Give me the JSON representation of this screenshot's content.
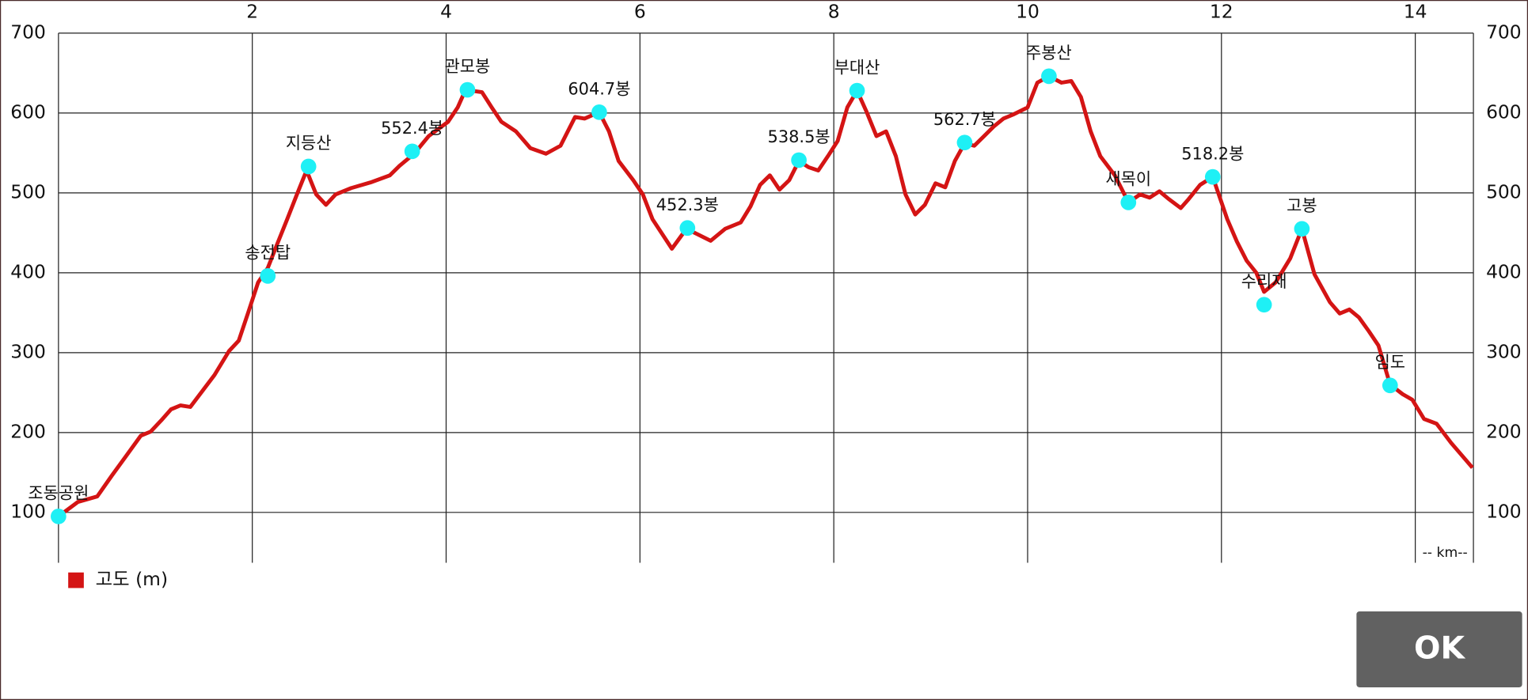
{
  "chart_data": {
    "type": "line",
    "x": [
      0,
      0.2,
      0.4,
      0.55,
      0.7,
      0.85,
      0.95,
      1.06,
      1.16,
      1.26,
      1.36,
      1.46,
      1.61,
      1.76,
      1.86,
      1.96,
      2.06,
      2.16,
      2.26,
      2.36,
      2.46,
      2.56,
      2.66,
      2.76,
      2.86,
      3.02,
      3.22,
      3.42,
      3.52,
      3.67,
      3.82,
      4.02,
      4.12,
      4.2,
      4.37,
      4.47,
      4.57,
      4.72,
      4.87,
      5.03,
      5.18,
      5.33,
      5.43,
      5.58,
      5.68,
      5.78,
      5.93,
      6.03,
      6.13,
      6.33,
      6.48,
      6.58,
      6.73,
      6.88,
      7.04,
      7.14,
      7.24,
      7.34,
      7.44,
      7.54,
      7.64,
      7.74,
      7.84,
      7.94,
      8.04,
      8.14,
      8.24,
      8.34,
      8.44,
      8.54,
      8.64,
      8.74,
      8.84,
      8.94,
      9.05,
      9.15,
      9.25,
      9.35,
      9.45,
      9.55,
      9.65,
      9.75,
      9.85,
      10.0,
      10.1,
      10.22,
      10.35,
      10.45,
      10.55,
      10.65,
      10.75,
      10.9,
      11.04,
      11.16,
      11.26,
      11.36,
      11.46,
      11.58,
      11.66,
      11.78,
      11.91,
      12.06,
      12.16,
      12.26,
      12.36,
      12.44,
      12.56,
      12.71,
      12.83,
      12.96,
      13.12,
      13.22,
      13.32,
      13.42,
      13.52,
      13.62,
      13.74,
      13.87,
      13.97,
      14.09,
      14.22,
      14.37,
      14.59
    ],
    "series": [
      {
        "name": "고도 (m)",
        "color": "#d41414",
        "values": [
          95,
          113,
          120,
          146,
          171,
          196,
          201,
          215,
          229,
          234,
          232,
          248,
          272,
          302,
          315,
          351,
          388,
          406,
          437,
          467,
          498,
          528,
          498,
          485,
          498,
          506,
          513,
          522,
          534,
          549,
          571,
          589,
          607,
          629,
          626,
          607,
          589,
          577,
          556,
          549,
          559,
          595,
          593,
          601,
          577,
          540,
          516,
          498,
          467,
          430,
          455,
          449,
          440,
          455,
          463,
          483,
          510,
          522,
          504,
          516,
          540,
          532,
          528,
          546,
          565,
          607,
          628,
          601,
          571,
          577,
          546,
          498,
          473,
          485,
          512,
          507,
          540,
          562,
          559,
          571,
          583,
          593,
          598,
          607,
          638,
          646,
          638,
          640,
          620,
          577,
          546,
          522,
          488,
          498,
          494,
          502,
          492,
          481,
          492,
          510,
          520,
          467,
          439,
          415,
          400,
          376,
          388,
          418,
          455,
          398,
          363,
          349,
          354,
          344,
          327,
          309,
          260,
          248,
          241,
          217,
          211,
          187,
          156
        ]
      }
    ],
    "annotations": [
      {
        "label": "조동공원",
        "x": 0,
        "y": 95
      },
      {
        "label": "송전탑",
        "x": 2.16,
        "y": 396
      },
      {
        "label": "지등산",
        "x": 2.58,
        "y": 533
      },
      {
        "label": "552.4봉",
        "x": 3.65,
        "y": 552
      },
      {
        "label": "관모봉",
        "x": 4.22,
        "y": 629
      },
      {
        "label": "604.7봉",
        "x": 5.58,
        "y": 601
      },
      {
        "label": "452.3봉",
        "x": 6.49,
        "y": 456
      },
      {
        "label": "538.5봉",
        "x": 7.64,
        "y": 541
      },
      {
        "label": "부대산",
        "x": 8.24,
        "y": 628
      },
      {
        "label": "562.7봉",
        "x": 9.35,
        "y": 563
      },
      {
        "label": "주봉산",
        "x": 10.22,
        "y": 646
      },
      {
        "label": "새목이",
        "x": 11.04,
        "y": 488
      },
      {
        "label": "518.2봉",
        "x": 11.91,
        "y": 520
      },
      {
        "label": "수리재",
        "x": 12.44,
        "y": 360
      },
      {
        "label": "고봉",
        "x": 12.83,
        "y": 455
      },
      {
        "label": "임도",
        "x": 13.74,
        "y": 259
      }
    ],
    "marker_color": "#1ef0f5",
    "xlim": [
      0,
      14.6
    ],
    "xticks": [
      2,
      4,
      6,
      8,
      10,
      12,
      14
    ],
    "ylim": [
      37,
      700
    ],
    "yticks": [
      100,
      200,
      300,
      400,
      500,
      600,
      700
    ],
    "x_label": "-- km--",
    "grid": true,
    "legend": "bottom-left"
  },
  "button": "OK"
}
